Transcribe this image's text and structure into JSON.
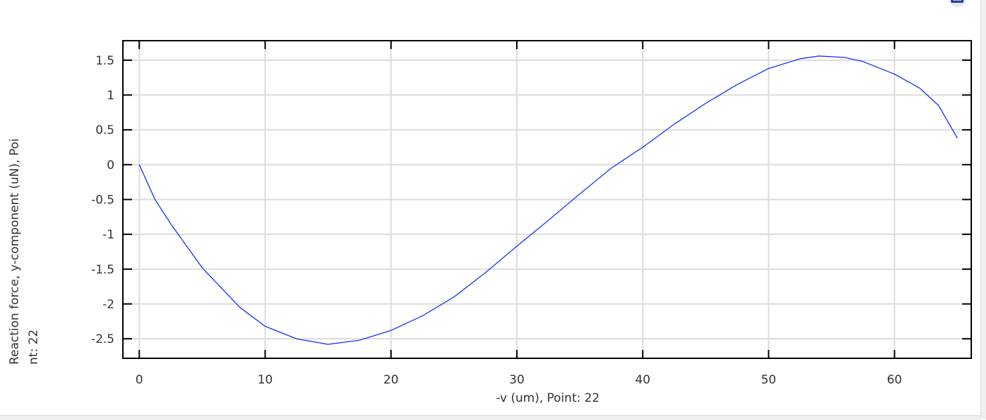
{
  "chart_data": {
    "type": "line",
    "xlabel": "-v (um), Point: 22",
    "ylabel": "Reaction force, y-component (uN), Poi\nnt: 22",
    "xlim": [
      -1.3,
      66.1
    ],
    "ylim": [
      -2.78,
      1.78
    ],
    "grid": true,
    "xticks": [
      0,
      10,
      20,
      30,
      40,
      50,
      60
    ],
    "yticks": [
      1.5,
      1,
      0.5,
      0,
      -0.5,
      -1,
      -1.5,
      -2,
      -2.5
    ],
    "xtick_labels": [
      "0",
      "10",
      "20",
      "30",
      "40",
      "50",
      "60"
    ],
    "ytick_labels": [
      "1.5",
      "1",
      "0.5",
      "0",
      "-0.5",
      "-1",
      "-1.5",
      "-2",
      "-2.5"
    ],
    "line_color": "#0022ff",
    "series": [
      {
        "x": [
          0,
          1.25,
          2.5,
          5,
          8,
          10,
          12.5,
          15,
          17.5,
          20,
          22.5,
          25,
          27.5,
          30,
          32.5,
          35,
          37.5,
          40,
          42.5,
          45,
          47.5,
          50,
          52.5,
          54,
          56,
          57.5,
          60,
          62,
          63.5,
          65
        ],
        "y": [
          0,
          -0.5,
          -0.85,
          -1.48,
          -2.05,
          -2.32,
          -2.5,
          -2.58,
          -2.52,
          -2.38,
          -2.17,
          -1.9,
          -1.55,
          -1.17,
          -0.8,
          -0.42,
          -0.05,
          0.25,
          0.58,
          0.88,
          1.15,
          1.38,
          1.52,
          1.56,
          1.54,
          1.48,
          1.3,
          1.1,
          0.85,
          0.38
        ]
      }
    ]
  },
  "toolbar": {
    "icon": "plot-window-icon"
  }
}
